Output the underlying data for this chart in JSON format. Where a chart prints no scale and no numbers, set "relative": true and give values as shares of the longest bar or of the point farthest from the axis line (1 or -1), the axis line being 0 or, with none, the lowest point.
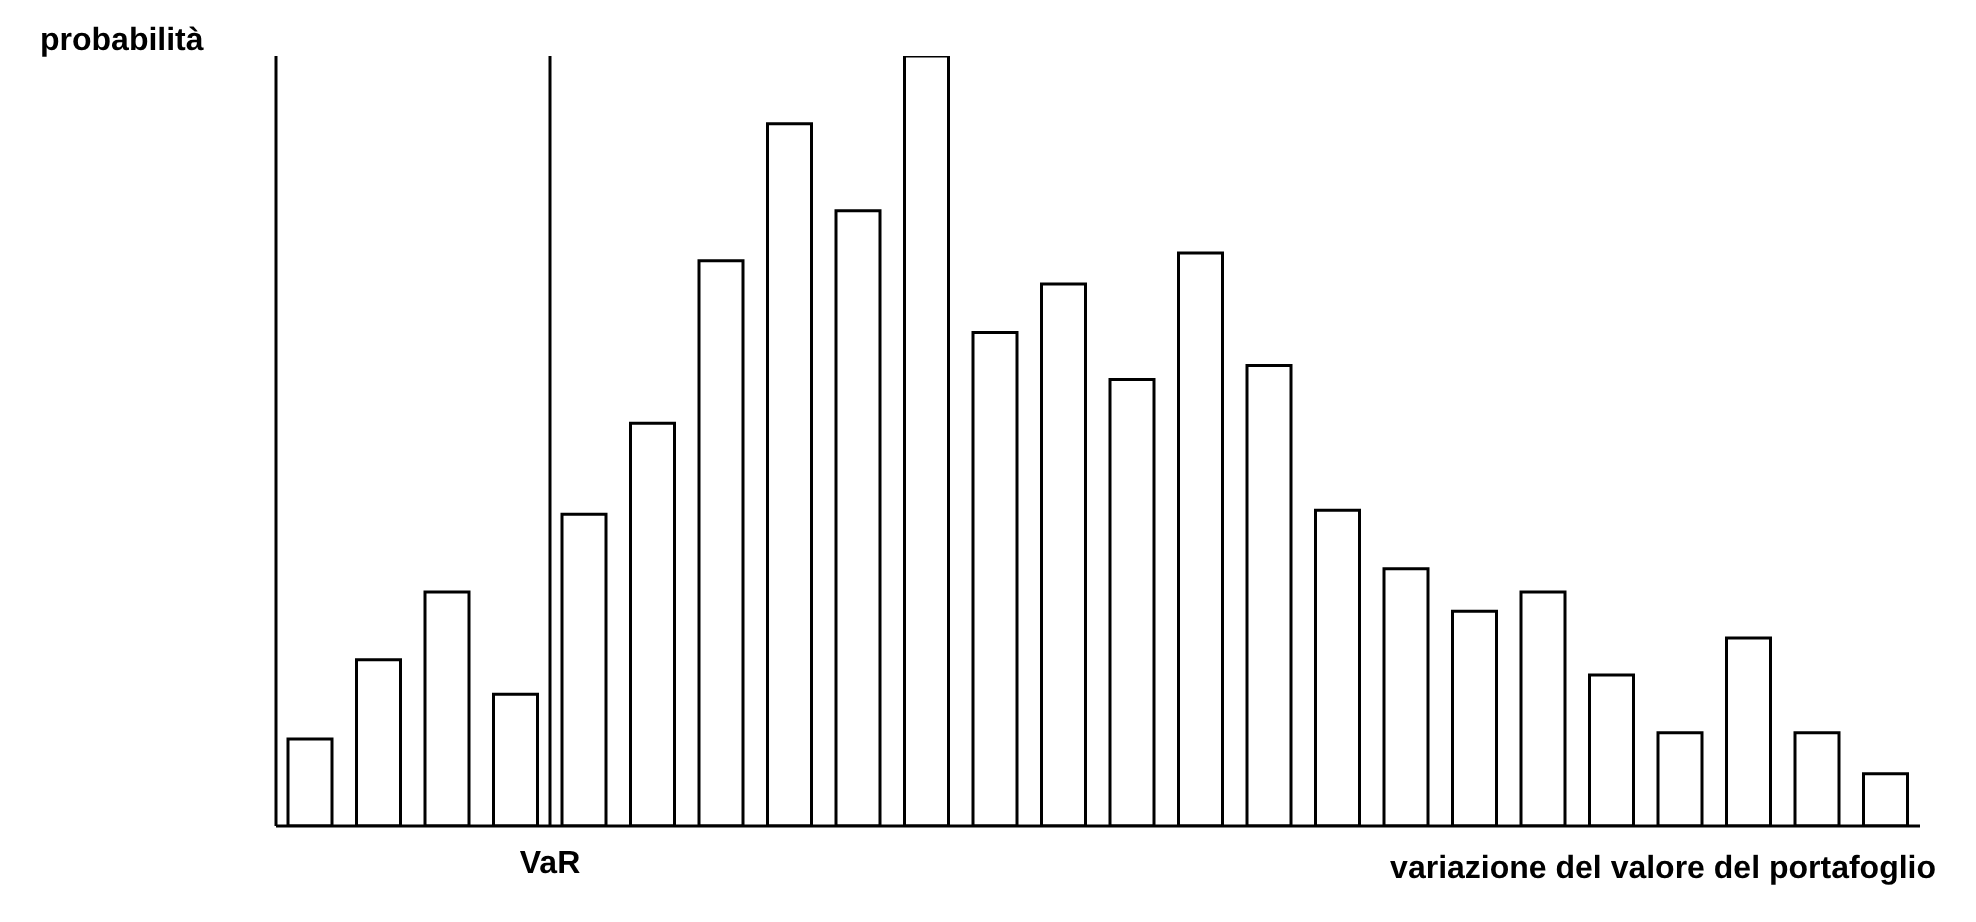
{
  "chart_data": {
    "type": "bar",
    "relative": true,
    "ylabel": "probabilità",
    "xlabel": "variazione del valore del portafoglio",
    "categories": [
      null,
      null,
      null,
      null,
      null,
      null,
      null,
      null,
      null,
      null,
      null,
      null,
      null,
      null,
      null,
      null,
      null,
      null,
      null,
      null,
      null,
      null,
      null,
      null
    ],
    "values": [
      0.113,
      0.216,
      0.304,
      0.171,
      0.405,
      0.523,
      0.734,
      0.912,
      0.799,
      1,
      0.641,
      0.704,
      0.58,
      0.744,
      0.598,
      0.41,
      0.334,
      0.279,
      0.304,
      0.196,
      0.121,
      0.244,
      0.121,
      0.068
    ],
    "color": "#ffffff",
    "annotations": [
      "VaR"
    ],
    "grid": false,
    "legend": false
  }
}
